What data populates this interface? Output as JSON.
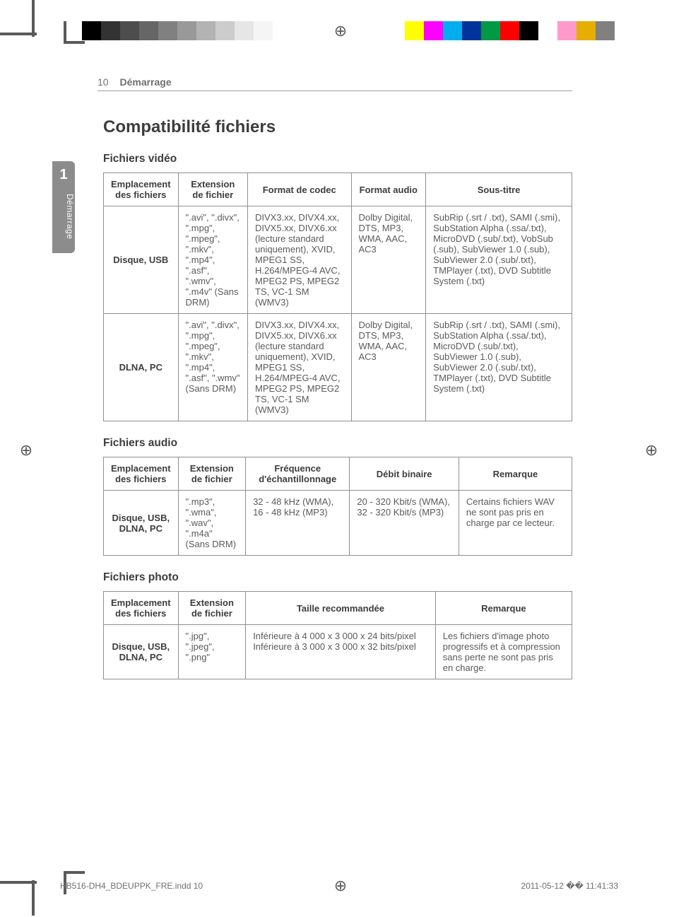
{
  "grayscale_swatches": [
    "#000000",
    "#333333",
    "#4d4d4d",
    "#666666",
    "#808080",
    "#999999",
    "#b3b3b3",
    "#cccccc",
    "#e6e6e6",
    "#f5f5f5"
  ],
  "color_swatches": [
    "#ffff00",
    "#ff00ff",
    "#00aeef",
    "#003399",
    "#009944",
    "#ff0000",
    "#000000",
    "#ffffff",
    "#ff9acb",
    "#e5ae00",
    "#808080"
  ],
  "header": {
    "page_no": "10",
    "section": "Démarrage"
  },
  "side_tab": {
    "number": "1",
    "label": "Démarrage"
  },
  "h_main": "Compatibilité fichiers",
  "video": {
    "title": "Fichiers vidéo",
    "head": [
      "Emplacement des fichiers",
      "Extension de fichier",
      "Format de codec",
      "Format audio",
      "Sous-titre"
    ],
    "rows": [
      {
        "loc": "Disque, USB",
        "ext": "\".avi\", \".divx\", \".mpg\", \".mpeg\", \".mkv\", \".mp4\", \".asf\", \".wmv\", \".m4v\" (Sans DRM)",
        "codec": "DIVX3.xx, DIVX4.xx, DIVX5.xx, DIVX6.xx (lecture standard uniquement), XVID, MPEG1 SS, H.264/MPEG-4 AVC, MPEG2 PS, MPEG2 TS, VC-1 SM (WMV3)",
        "audio": "Dolby Digital, DTS, MP3, WMA, AAC, AC3",
        "sub": "SubRip (.srt / .txt), SAMI (.smi), SubStation Alpha (.ssa/.txt), MicroDVD (.sub/.txt), VobSub (.sub), SubViewer 1.0 (.sub), SubViewer 2.0 (.sub/.txt), TMPlayer (.txt), DVD Subtitle System (.txt)"
      },
      {
        "loc": "DLNA, PC",
        "ext": "\".avi\", \".divx\", \".mpg\", \".mpeg\", \".mkv\", \".mp4\", \".asf\", \".wmv\" (Sans DRM)",
        "codec": "DIVX3.xx, DIVX4.xx, DIVX5.xx, DIVX6.xx (lecture standard uniquement), XVID, MPEG1 SS, H.264/MPEG-4 AVC, MPEG2 PS, MPEG2 TS, VC-1 SM (WMV3)",
        "audio": "Dolby Digital, DTS, MP3, WMA, AAC, AC3",
        "sub": "SubRip (.srt / .txt), SAMI (.smi), SubStation Alpha (.ssa/.txt), MicroDVD (.sub/.txt), SubViewer 1.0 (.sub), SubViewer 2.0 (.sub/.txt), TMPlayer (.txt), DVD Subtitle System (.txt)"
      }
    ]
  },
  "audio": {
    "title": "Fichiers audio",
    "head": [
      "Emplacement des fichiers",
      "Extension de fichier",
      "Fréquence d'échantillonnage",
      "Débit binaire",
      "Remarque"
    ],
    "rows": [
      {
        "loc": "Disque, USB, DLNA, PC",
        "ext": "\".mp3\", \".wma\", \".wav\", \".m4a\" (Sans DRM)",
        "freq": "32 - 48 kHz (WMA), 16 - 48 kHz (MP3)",
        "bit": "20 - 320 Kbit/s (WMA), 32 - 320 Kbit/s (MP3)",
        "note": "Certains fichiers WAV ne sont pas pris en charge par ce lecteur."
      }
    ]
  },
  "photo": {
    "title": "Fichiers photo",
    "head": [
      "Emplacement des fichiers",
      "Extension de fichier",
      "Taille recommandée",
      "Remarque"
    ],
    "rows": [
      {
        "loc": "Disque, USB, DLNA, PC",
        "ext": "\".jpg\", \".jpeg\", \".png\"",
        "size": "Inférieure à 4 000 x 3 000 x 24 bits/pixel Inférieure à 3 000 x 3 000 x 32 bits/pixel",
        "note": "Les fichiers d'image photo progressifs et à compression sans perte ne sont pas pris en charge."
      }
    ]
  },
  "footer": {
    "file": "HB516-DH4_BDEUPPK_FRE.indd   10",
    "stamp": "2011-05-12   �� 11:41:33"
  }
}
